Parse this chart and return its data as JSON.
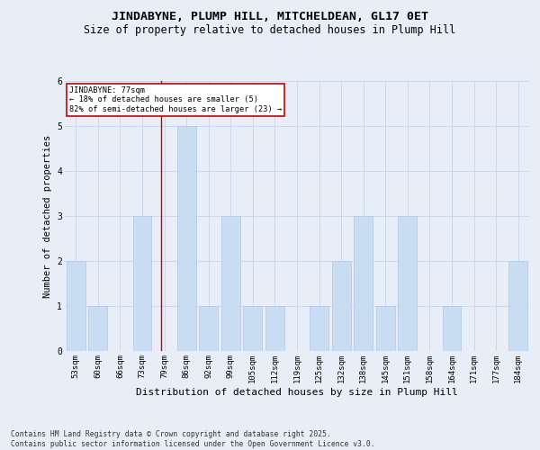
{
  "title1": "JINDABYNE, PLUMP HILL, MITCHELDEAN, GL17 0ET",
  "title2": "Size of property relative to detached houses in Plump Hill",
  "xlabel": "Distribution of detached houses by size in Plump Hill",
  "ylabel": "Number of detached properties",
  "categories": [
    "53sqm",
    "60sqm",
    "66sqm",
    "73sqm",
    "79sqm",
    "86sqm",
    "92sqm",
    "99sqm",
    "105sqm",
    "112sqm",
    "119sqm",
    "125sqm",
    "132sqm",
    "138sqm",
    "145sqm",
    "151sqm",
    "158sqm",
    "164sqm",
    "171sqm",
    "177sqm",
    "184sqm"
  ],
  "values": [
    2,
    1,
    0,
    3,
    0,
    5,
    1,
    3,
    1,
    1,
    0,
    1,
    2,
    3,
    1,
    3,
    0,
    1,
    0,
    0,
    2
  ],
  "bar_color": "#c9ddf2",
  "bar_edgecolor": "#b0c8e8",
  "grid_color": "#c8d4e8",
  "background_color": "#e8eef8",
  "annotation_text": "JINDABYNE: 77sqm\n← 18% of detached houses are smaller (5)\n82% of semi-detached houses are larger (23) →",
  "annotation_box_color": "#ffffff",
  "annotation_box_edgecolor": "#cc0000",
  "redline_x": 3.85,
  "ylim": [
    0,
    6
  ],
  "yticks": [
    0,
    1,
    2,
    3,
    4,
    5,
    6
  ],
  "footnote": "Contains HM Land Registry data © Crown copyright and database right 2025.\nContains public sector information licensed under the Open Government Licence v3.0.",
  "title_fontsize": 9.5,
  "subtitle_fontsize": 8.5,
  "axis_label_fontsize": 8,
  "tick_fontsize": 6.5,
  "footnote_fontsize": 5.8,
  "ylabel_fontsize": 7.5
}
